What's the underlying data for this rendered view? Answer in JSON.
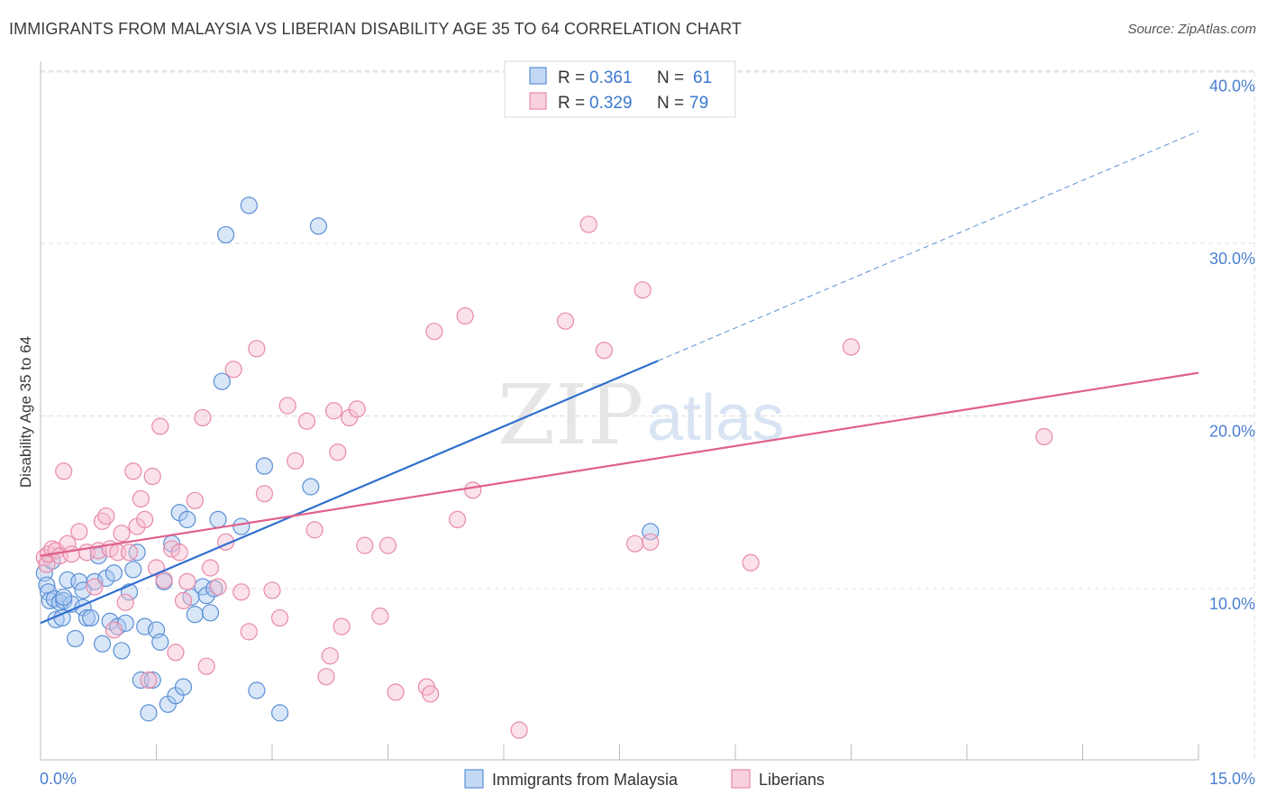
{
  "title": "IMMIGRANTS FROM MALAYSIA VS LIBERIAN DISABILITY AGE 35 TO 64 CORRELATION CHART",
  "source": "Source: ZipAtlas.com",
  "watermark": {
    "part1": "ZIP",
    "part2": "atlas"
  },
  "colors": {
    "blue_fill": "#a9c8f0",
    "blue_stroke": "#5b8fd6",
    "blue_line": "#2f6fcf",
    "pink_fill": "#f6bdd0",
    "pink_stroke": "#e88aa8",
    "pink_line": "#e0608c",
    "grid": "#dcdcdc",
    "tick_text": "#4a7fd0"
  },
  "legend": {
    "r_label": "R =",
    "n_label": "N =",
    "rows": [
      {
        "r": "0.361",
        "n": "61",
        "series": "Immigrants from Malaysia"
      },
      {
        "r": "0.329",
        "n": "79",
        "series": "Liberians"
      }
    ]
  },
  "chart_data": {
    "type": "scatter",
    "title": "IMMIGRANTS FROM MALAYSIA VS LIBERIAN DISABILITY AGE 35 TO 64 CORRELATION CHART",
    "xlabel": "",
    "ylabel": "Disability Age 35 to 64",
    "xlim": [
      0,
      15
    ],
    "ylim": [
      0,
      40
    ],
    "x_tick_labels": [
      {
        "value": 0,
        "label": "0.0%"
      },
      {
        "value": 15,
        "label": "15.0%"
      }
    ],
    "y_tick_labels": [
      {
        "value": 10,
        "label": "10.0%"
      },
      {
        "value": 20,
        "label": "20.0%"
      },
      {
        "value": 30,
        "label": "30.0%"
      },
      {
        "value": 40,
        "label": "40.0%"
      }
    ],
    "x_minor_ticks": [
      1.5,
      3,
      4.5,
      6,
      7.5,
      9,
      10.5,
      12,
      13.5,
      15
    ],
    "grid": true,
    "legend_position": "top-center",
    "series": [
      {
        "name": "Immigrants from Malaysia",
        "color": "#5b8fd6",
        "trend": {
          "x": [
            0,
            8.0
          ],
          "y": [
            8.0,
            23.2
          ],
          "dashed_extension_to": [
            15,
            36.5
          ]
        },
        "points": [
          [
            0.05,
            10.9
          ],
          [
            0.08,
            10.2
          ],
          [
            0.1,
            9.8
          ],
          [
            0.12,
            9.3
          ],
          [
            0.15,
            11.6
          ],
          [
            0.18,
            9.4
          ],
          [
            0.2,
            8.2
          ],
          [
            0.25,
            9.2
          ],
          [
            0.28,
            8.3
          ],
          [
            0.3,
            9.3
          ],
          [
            0.35,
            10.5
          ],
          [
            0.4,
            9.1
          ],
          [
            0.45,
            7.1
          ],
          [
            0.5,
            10.4
          ],
          [
            0.55,
            8.9
          ],
          [
            0.6,
            8.3
          ],
          [
            0.65,
            8.3
          ],
          [
            0.7,
            10.4
          ],
          [
            0.75,
            11.9
          ],
          [
            0.8,
            6.8
          ],
          [
            0.85,
            10.6
          ],
          [
            0.9,
            8.1
          ],
          [
            0.95,
            10.9
          ],
          [
            1.0,
            7.8
          ],
          [
            1.05,
            6.4
          ],
          [
            1.1,
            8.0
          ],
          [
            1.15,
            9.8
          ],
          [
            1.2,
            11.1
          ],
          [
            1.25,
            12.1
          ],
          [
            1.3,
            4.7
          ],
          [
            1.35,
            7.8
          ],
          [
            1.4,
            2.8
          ],
          [
            1.45,
            4.7
          ],
          [
            1.5,
            7.6
          ],
          [
            1.55,
            6.9
          ],
          [
            1.6,
            10.4
          ],
          [
            1.65,
            3.3
          ],
          [
            1.7,
            12.6
          ],
          [
            1.75,
            3.8
          ],
          [
            1.8,
            14.4
          ],
          [
            1.85,
            4.3
          ],
          [
            1.9,
            14.0
          ],
          [
            1.95,
            9.5
          ],
          [
            2.0,
            8.5
          ],
          [
            2.1,
            10.1
          ],
          [
            2.15,
            9.6
          ],
          [
            2.2,
            8.6
          ],
          [
            2.25,
            10.0
          ],
          [
            2.3,
            14.0
          ],
          [
            2.35,
            22.0
          ],
          [
            2.4,
            30.5
          ],
          [
            2.6,
            13.6
          ],
          [
            2.7,
            32.2
          ],
          [
            2.8,
            4.1
          ],
          [
            2.9,
            17.1
          ],
          [
            3.1,
            2.8
          ],
          [
            3.5,
            15.9
          ],
          [
            3.6,
            31.0
          ],
          [
            7.9,
            13.3
          ],
          [
            0.3,
            9.5
          ],
          [
            0.55,
            9.9
          ]
        ]
      },
      {
        "name": "Liberians",
        "color": "#e88aa8",
        "trend": {
          "x": [
            0,
            15
          ],
          "y": [
            11.9,
            22.5
          ]
        },
        "points": [
          [
            0.05,
            11.8
          ],
          [
            0.08,
            11.4
          ],
          [
            0.1,
            12.0
          ],
          [
            0.15,
            12.3
          ],
          [
            0.2,
            12.2
          ],
          [
            0.25,
            11.9
          ],
          [
            0.3,
            16.8
          ],
          [
            0.35,
            12.6
          ],
          [
            0.4,
            12.0
          ],
          [
            0.5,
            13.3
          ],
          [
            0.6,
            12.1
          ],
          [
            0.7,
            10.1
          ],
          [
            0.75,
            12.2
          ],
          [
            0.8,
            13.9
          ],
          [
            0.85,
            14.2
          ],
          [
            0.9,
            12.3
          ],
          [
            0.95,
            7.6
          ],
          [
            1.0,
            12.1
          ],
          [
            1.05,
            13.2
          ],
          [
            1.1,
            9.2
          ],
          [
            1.15,
            12.1
          ],
          [
            1.2,
            16.8
          ],
          [
            1.25,
            13.6
          ],
          [
            1.3,
            15.2
          ],
          [
            1.35,
            14.0
          ],
          [
            1.4,
            4.7
          ],
          [
            1.45,
            16.5
          ],
          [
            1.5,
            11.2
          ],
          [
            1.55,
            19.4
          ],
          [
            1.6,
            10.5
          ],
          [
            1.7,
            12.3
          ],
          [
            1.75,
            6.3
          ],
          [
            1.8,
            12.1
          ],
          [
            1.85,
            9.3
          ],
          [
            1.9,
            10.4
          ],
          [
            2.0,
            15.1
          ],
          [
            2.1,
            19.9
          ],
          [
            2.15,
            5.5
          ],
          [
            2.2,
            11.2
          ],
          [
            2.3,
            10.1
          ],
          [
            2.4,
            12.7
          ],
          [
            2.5,
            22.7
          ],
          [
            2.6,
            9.8
          ],
          [
            2.7,
            7.5
          ],
          [
            2.8,
            23.9
          ],
          [
            2.9,
            15.5
          ],
          [
            3.0,
            9.9
          ],
          [
            3.1,
            8.3
          ],
          [
            3.2,
            20.6
          ],
          [
            3.3,
            17.4
          ],
          [
            3.45,
            19.7
          ],
          [
            3.55,
            13.4
          ],
          [
            3.7,
            4.9
          ],
          [
            3.75,
            6.1
          ],
          [
            3.8,
            20.3
          ],
          [
            3.85,
            17.9
          ],
          [
            3.9,
            7.8
          ],
          [
            4.0,
            19.9
          ],
          [
            4.1,
            20.4
          ],
          [
            4.2,
            12.5
          ],
          [
            4.4,
            8.4
          ],
          [
            4.5,
            12.5
          ],
          [
            4.6,
            4.0
          ],
          [
            5.0,
            4.3
          ],
          [
            5.05,
            3.9
          ],
          [
            5.1,
            24.9
          ],
          [
            5.4,
            14.0
          ],
          [
            5.5,
            25.8
          ],
          [
            5.6,
            15.7
          ],
          [
            6.2,
            1.8
          ],
          [
            6.8,
            25.5
          ],
          [
            7.1,
            31.1
          ],
          [
            7.3,
            23.8
          ],
          [
            7.7,
            12.6
          ],
          [
            7.8,
            27.3
          ],
          [
            7.9,
            12.7
          ],
          [
            9.2,
            11.5
          ],
          [
            10.5,
            24.0
          ],
          [
            13.0,
            18.8
          ]
        ]
      }
    ]
  },
  "bottom_legend": [
    {
      "label": "Immigrants from Malaysia"
    },
    {
      "label": "Liberians"
    }
  ]
}
